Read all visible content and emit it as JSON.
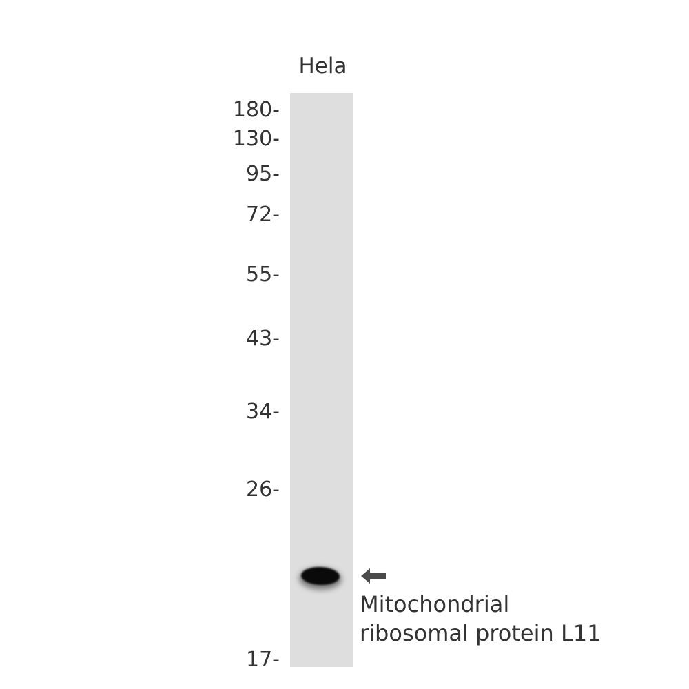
{
  "lane": {
    "label": "Hela"
  },
  "markers": [
    {
      "label": "180-",
      "kda": 180
    },
    {
      "label": "130-",
      "kda": 130
    },
    {
      "label": "95-",
      "kda": 95
    },
    {
      "label": "72-",
      "kda": 72
    },
    {
      "label": "55-",
      "kda": 55
    },
    {
      "label": "43-",
      "kda": 43
    },
    {
      "label": "34-",
      "kda": 34
    },
    {
      "label": "26-",
      "kda": 26
    },
    {
      "label": "17-",
      "kda": 17
    }
  ],
  "target": {
    "line1": "Mitochondrial",
    "line2": "ribosomal protein L11",
    "arrow_icon": "left-arrow-icon"
  },
  "colors": {
    "lane": "#dedede",
    "band": "#0a0a0a",
    "arrow": "#4a4a4a",
    "text": "#333333"
  }
}
